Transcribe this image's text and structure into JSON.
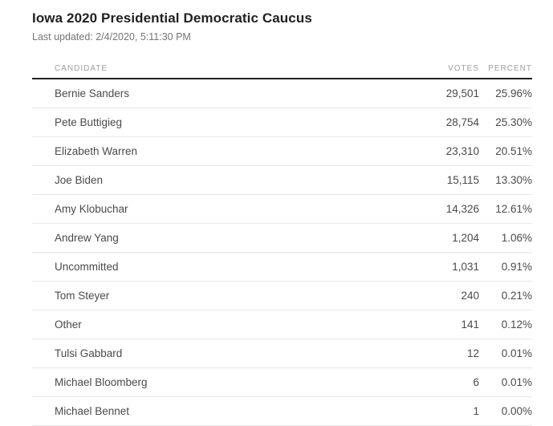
{
  "page": {
    "title": "Iowa 2020 Presidential Democratic Caucus",
    "last_updated": "Last updated: 2/4/2020, 5:11:30 PM"
  },
  "colors": {
    "title_text": "#212121",
    "muted_text": "#757575",
    "header_text": "#9e9e9e",
    "row_text": "#4a4a4a",
    "row_separator": "#e8e8e8",
    "header_underline": "#212121",
    "background": "#ffffff"
  },
  "table": {
    "headers": {
      "candidate": "CANDIDATE",
      "votes": "VOTES",
      "percent": "PERCENT"
    },
    "rows": [
      {
        "candidate": "Bernie Sanders",
        "votes": "29,501",
        "percent": "25.96%"
      },
      {
        "candidate": "Pete Buttigieg",
        "votes": "28,754",
        "percent": "25.30%"
      },
      {
        "candidate": "Elizabeth Warren",
        "votes": "23,310",
        "percent": "20.51%"
      },
      {
        "candidate": "Joe Biden",
        "votes": "15,115",
        "percent": "13.30%"
      },
      {
        "candidate": "Amy Klobuchar",
        "votes": "14,326",
        "percent": "12.61%"
      },
      {
        "candidate": "Andrew Yang",
        "votes": "1,204",
        "percent": "1.06%"
      },
      {
        "candidate": "Uncommitted",
        "votes": "1,031",
        "percent": "0.91%"
      },
      {
        "candidate": "Tom Steyer",
        "votes": "240",
        "percent": "0.21%"
      },
      {
        "candidate": "Other",
        "votes": "141",
        "percent": "0.12%"
      },
      {
        "candidate": "Tulsi Gabbard",
        "votes": "12",
        "percent": "0.01%"
      },
      {
        "candidate": "Michael Bloomberg",
        "votes": "6",
        "percent": "0.01%"
      },
      {
        "candidate": "Michael Bennet",
        "votes": "1",
        "percent": "0.00%"
      }
    ]
  }
}
